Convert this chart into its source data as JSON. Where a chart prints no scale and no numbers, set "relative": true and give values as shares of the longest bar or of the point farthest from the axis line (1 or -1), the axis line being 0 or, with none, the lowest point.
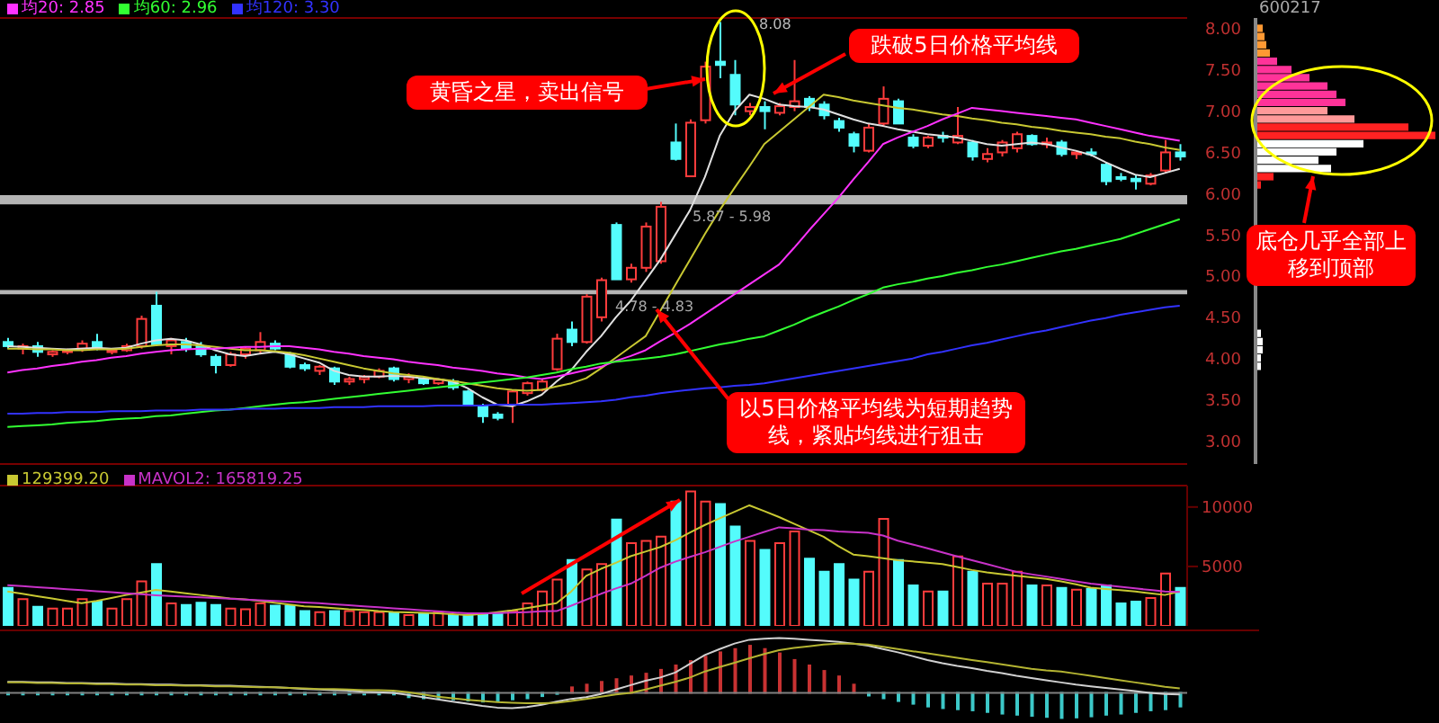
{
  "chart_data": [
    {
      "type": "candlestick",
      "categories": [
        null,
        null,
        null,
        null,
        null,
        null,
        null,
        null,
        null,
        null,
        null,
        null,
        null,
        null,
        null,
        null,
        null,
        null,
        null,
        null,
        null,
        null,
        null,
        null,
        null,
        null,
        null,
        null,
        null,
        null,
        null,
        null,
        null,
        null,
        null,
        null,
        null,
        null,
        null,
        null,
        null,
        null,
        null,
        null,
        null,
        null,
        null,
        null,
        null,
        null,
        null,
        null,
        null,
        null,
        null,
        null,
        null,
        null,
        null,
        null,
        null,
        null,
        null,
        null,
        null,
        null,
        null,
        null,
        null,
        null,
        null,
        null,
        null,
        null,
        null,
        null,
        null,
        null,
        null,
        null
      ],
      "ohlc": [
        [
          4.2,
          4.25,
          4.12,
          4.15
        ],
        [
          4.12,
          4.18,
          4.05,
          4.15
        ],
        [
          4.15,
          4.2,
          4.02,
          4.08
        ],
        [
          4.05,
          4.1,
          4.02,
          4.08
        ],
        [
          4.08,
          4.12,
          4.05,
          4.1
        ],
        [
          4.12,
          4.22,
          4.08,
          4.18
        ],
        [
          4.2,
          4.3,
          4.1,
          4.12
        ],
        [
          4.08,
          4.12,
          4.05,
          4.1
        ],
        [
          4.1,
          4.18,
          4.08,
          4.15
        ],
        [
          4.15,
          4.52,
          4.12,
          4.48
        ],
        [
          4.64,
          4.81,
          4.15,
          4.17
        ],
        [
          4.15,
          4.25,
          4.05,
          4.22
        ],
        [
          4.2,
          4.25,
          4.08,
          4.12
        ],
        [
          4.15,
          4.2,
          4.02,
          4.05
        ],
        [
          4.02,
          4.05,
          3.82,
          3.92
        ],
        [
          3.92,
          4.08,
          3.9,
          4.05
        ],
        [
          4.05,
          4.15,
          4.0,
          4.12
        ],
        [
          4.1,
          4.32,
          4.05,
          4.2
        ],
        [
          4.18,
          4.22,
          4.1,
          4.12
        ],
        [
          4.05,
          4.08,
          3.88,
          3.9
        ],
        [
          3.92,
          3.95,
          3.85,
          3.88
        ],
        [
          3.85,
          3.92,
          3.8,
          3.9
        ],
        [
          3.88,
          3.9,
          3.68,
          3.72
        ],
        [
          3.72,
          3.78,
          3.68,
          3.75
        ],
        [
          3.75,
          3.8,
          3.7,
          3.78
        ],
        [
          3.78,
          3.88,
          3.76,
          3.85
        ],
        [
          3.88,
          3.9,
          3.72,
          3.75
        ],
        [
          3.75,
          3.82,
          3.7,
          3.78
        ],
        [
          3.76,
          3.78,
          3.68,
          3.7
        ],
        [
          3.7,
          3.76,
          3.68,
          3.74
        ],
        [
          3.72,
          3.75,
          3.62,
          3.65
        ],
        [
          3.6,
          3.62,
          3.42,
          3.45
        ],
        [
          3.42,
          3.45,
          3.22,
          3.3
        ],
        [
          3.32,
          3.35,
          3.25,
          3.28
        ],
        [
          3.44,
          3.62,
          3.22,
          3.6
        ],
        [
          3.58,
          3.72,
          3.55,
          3.7
        ],
        [
          3.62,
          3.75,
          3.6,
          3.72
        ],
        [
          3.87,
          4.3,
          3.85,
          4.24
        ],
        [
          4.35,
          4.45,
          4.15,
          4.2
        ],
        [
          4.2,
          4.78,
          4.18,
          4.75
        ],
        [
          4.5,
          4.98,
          4.45,
          4.95
        ],
        [
          5.62,
          5.65,
          4.96,
          4.96
        ],
        [
          4.96,
          5.15,
          4.92,
          5.1
        ],
        [
          5.1,
          5.65,
          5.05,
          5.6
        ],
        [
          5.18,
          5.9,
          5.15,
          5.84
        ],
        [
          6.62,
          6.85,
          6.4,
          6.42
        ],
        [
          6.21,
          6.9,
          6.2,
          6.86
        ],
        [
          6.89,
          7.6,
          6.85,
          7.54
        ],
        [
          7.6,
          8.08,
          7.4,
          7.56
        ],
        [
          7.44,
          7.62,
          6.95,
          7.08
        ],
        [
          7.0,
          7.1,
          6.95,
          7.05
        ],
        [
          7.05,
          7.12,
          6.78,
          7.0
        ],
        [
          6.98,
          7.1,
          6.95,
          7.06
        ],
        [
          7.05,
          7.62,
          7.0,
          7.12
        ],
        [
          7.15,
          7.18,
          7.0,
          7.05
        ],
        [
          7.08,
          7.12,
          6.9,
          6.95
        ],
        [
          6.88,
          6.92,
          6.75,
          6.8
        ],
        [
          6.72,
          6.75,
          6.5,
          6.58
        ],
        [
          6.52,
          6.85,
          6.5,
          6.8
        ],
        [
          6.85,
          7.3,
          6.82,
          7.15
        ],
        [
          7.12,
          7.15,
          6.85,
          6.85
        ],
        [
          6.68,
          6.72,
          6.55,
          6.58
        ],
        [
          6.58,
          6.7,
          6.55,
          6.68
        ],
        [
          6.7,
          6.75,
          6.62,
          6.68
        ],
        [
          6.62,
          7.05,
          6.6,
          6.7
        ],
        [
          6.62,
          6.65,
          6.4,
          6.45
        ],
        [
          6.42,
          6.55,
          6.38,
          6.48
        ],
        [
          6.5,
          6.65,
          6.45,
          6.62
        ],
        [
          6.55,
          6.75,
          6.5,
          6.72
        ],
        [
          6.7,
          6.72,
          6.58,
          6.6
        ],
        [
          6.6,
          6.68,
          6.55,
          6.62
        ],
        [
          6.62,
          6.65,
          6.45,
          6.48
        ],
        [
          6.48,
          6.52,
          6.42,
          6.5
        ],
        [
          6.5,
          6.55,
          6.45,
          6.48
        ],
        [
          6.35,
          6.38,
          6.1,
          6.15
        ],
        [
          6.2,
          6.25,
          6.15,
          6.2
        ],
        [
          6.18,
          6.22,
          6.05,
          6.15
        ],
        [
          6.12,
          6.25,
          6.1,
          6.22
        ],
        [
          6.28,
          6.65,
          6.25,
          6.5
        ],
        [
          6.5,
          6.6,
          6.4,
          6.45
        ]
      ],
      "colors": [
        "#54fcfc",
        "#ff3c3c",
        "#54fcfc",
        "#ff3c3c",
        "#ff3c3c",
        "#ff3c3c",
        "#54fcfc",
        "#ff3c3c",
        "#ff3c3c",
        "#ff3c3c",
        "#54fcfc",
        "#ff3c3c",
        "#54fcfc",
        "#54fcfc",
        "#54fcfc",
        "#ff3c3c",
        "#ff3c3c",
        "#ff3c3c",
        "#54fcfc",
        "#54fcfc",
        "#54fcfc",
        "#ff3c3c",
        "#54fcfc",
        "#ff3c3c",
        "#ff3c3c",
        "#ff3c3c",
        "#54fcfc",
        "#ff3c3c",
        "#54fcfc",
        "#ff3c3c",
        "#54fcfc",
        "#54fcfc",
        "#54fcfc",
        "#54fcfc",
        "#ff3c3c",
        "#ff3c3c",
        "#ff3c3c",
        "#ff3c3c",
        "#54fcfc",
        "#ff3c3c",
        "#ff3c3c",
        "#54fcfc",
        "#ff3c3c",
        "#ff3c3c",
        "#ff3c3c",
        "#54fcfc",
        "#ff3c3c",
        "#ff3c3c",
        "#54fcfc",
        "#54fcfc",
        "#ff3c3c",
        "#54fcfc",
        "#ff3c3c",
        "#ff3c3c",
        "#54fcfc",
        "#54fcfc",
        "#54fcfc",
        "#54fcfc",
        "#ff3c3c",
        "#ff3c3c",
        "#54fcfc",
        "#54fcfc",
        "#ff3c3c",
        "#54fcfc",
        "#ff3c3c",
        "#54fcfc",
        "#ff3c3c",
        "#ff3c3c",
        "#ff3c3c",
        "#54fcfc",
        "#ff3c3c",
        "#54fcfc",
        "#ff3c3c",
        "#54fcfc",
        "#54fcfc",
        "#54fcfc",
        "#54fcfc",
        "#ff3c3c",
        "#ff3c3c",
        "#54fcfc"
      ],
      "series": [
        {
          "type": "line",
          "color": "#e0e0e0",
          "values": [
            4.15,
            4.14,
            4.13,
            4.12,
            4.11,
            4.12,
            4.13,
            4.12,
            4.13,
            4.18,
            4.22,
            4.24,
            4.22,
            4.17,
            4.1,
            4.05,
            4.03,
            4.06,
            4.08,
            4.05,
            4.0,
            3.95,
            3.85,
            3.8,
            3.78,
            3.78,
            3.79,
            3.78,
            3.76,
            3.75,
            3.72,
            3.64,
            3.53,
            3.44,
            3.42,
            3.48,
            3.56,
            3.72,
            3.86,
            4.08,
            4.27,
            4.5,
            4.7,
            4.95,
            5.2,
            5.5,
            5.8,
            6.2,
            6.7,
            7.0,
            7.2,
            7.15,
            7.08,
            7.06,
            7.05,
            7.02,
            6.96,
            6.9,
            6.85,
            6.82,
            6.78,
            6.75,
            6.72,
            6.7,
            6.68,
            6.64,
            6.6,
            6.58,
            6.6,
            6.62,
            6.6,
            6.56,
            6.52,
            6.47,
            6.38,
            6.3,
            6.23,
            6.2,
            6.25,
            6.3
          ]
        },
        {
          "type": "line",
          "color": "#c8c832",
          "values": [
            4.12,
            4.12,
            4.11,
            4.11,
            4.1,
            4.1,
            4.11,
            4.11,
            4.12,
            4.14,
            4.16,
            4.17,
            4.17,
            4.16,
            4.14,
            4.12,
            4.1,
            4.1,
            4.09,
            4.07,
            4.04,
            4.0,
            3.96,
            3.92,
            3.88,
            3.85,
            3.82,
            3.8,
            3.78,
            3.75,
            3.73,
            3.7,
            3.67,
            3.64,
            3.62,
            3.61,
            3.62,
            3.66,
            3.7,
            3.76,
            3.88,
            4.01,
            4.14,
            4.27,
            4.58,
            4.89,
            5.2,
            5.51,
            5.8,
            6.07,
            6.33,
            6.6,
            6.75,
            6.9,
            7.05,
            7.2,
            7.17,
            7.13,
            7.1,
            7.07,
            7.04,
            7.02,
            6.99,
            6.96,
            6.94,
            6.91,
            6.89,
            6.86,
            6.84,
            6.81,
            6.79,
            6.76,
            6.74,
            6.72,
            6.69,
            6.67,
            6.63,
            6.6,
            6.56,
            6.53
          ]
        },
        {
          "type": "line",
          "name": "均20: 2.85",
          "color": "#ff32ff",
          "values": [
            3.83,
            3.86,
            3.88,
            3.91,
            3.93,
            3.96,
            3.98,
            4.01,
            4.03,
            4.06,
            4.08,
            4.1,
            4.11,
            4.12,
            4.12,
            4.13,
            4.14,
            4.14,
            4.15,
            4.15,
            4.13,
            4.11,
            4.08,
            4.06,
            4.03,
            4.01,
            3.99,
            3.96,
            3.94,
            3.92,
            3.89,
            3.87,
            3.85,
            3.82,
            3.8,
            3.77,
            3.75,
            3.78,
            3.82,
            3.86,
            3.9,
            3.97,
            4.03,
            4.1,
            4.21,
            4.31,
            4.42,
            4.54,
            4.66,
            4.78,
            4.9,
            5.02,
            5.14,
            5.34,
            5.55,
            5.75,
            5.95,
            6.17,
            6.38,
            6.6,
            6.68,
            6.75,
            6.82,
            6.9,
            6.97,
            7.04,
            7.02,
            7.0,
            6.98,
            6.96,
            6.94,
            6.92,
            6.9,
            6.86,
            6.82,
            6.78,
            6.74,
            6.7,
            6.67,
            6.64
          ]
        },
        {
          "type": "line",
          "name": "均60: 2.96",
          "color": "#32ff32",
          "values": [
            3.17,
            3.18,
            3.19,
            3.2,
            3.22,
            3.23,
            3.24,
            3.26,
            3.27,
            3.28,
            3.3,
            3.31,
            3.33,
            3.35,
            3.37,
            3.38,
            3.4,
            3.42,
            3.44,
            3.46,
            3.47,
            3.49,
            3.51,
            3.53,
            3.55,
            3.57,
            3.59,
            3.61,
            3.63,
            3.65,
            3.67,
            3.69,
            3.71,
            3.73,
            3.75,
            3.77,
            3.8,
            3.83,
            3.87,
            3.9,
            3.94,
            3.96,
            3.98,
            4.0,
            4.02,
            4.05,
            4.09,
            4.13,
            4.17,
            4.2,
            4.24,
            4.27,
            4.34,
            4.41,
            4.49,
            4.56,
            4.63,
            4.71,
            4.78,
            4.86,
            4.9,
            4.93,
            4.97,
            5.0,
            5.04,
            5.07,
            5.11,
            5.14,
            5.18,
            5.22,
            5.26,
            5.3,
            5.33,
            5.37,
            5.41,
            5.45,
            5.51,
            5.57,
            5.63,
            5.69
          ]
        },
        {
          "type": "line",
          "name": "均120: 3.30",
          "color": "#3232ff",
          "values": [
            3.33,
            3.33,
            3.34,
            3.34,
            3.35,
            3.35,
            3.35,
            3.36,
            3.36,
            3.36,
            3.37,
            3.37,
            3.37,
            3.38,
            3.38,
            3.38,
            3.39,
            3.39,
            3.39,
            3.4,
            3.4,
            3.4,
            3.41,
            3.41,
            3.41,
            3.42,
            3.42,
            3.42,
            3.42,
            3.43,
            3.43,
            3.43,
            3.43,
            3.44,
            3.44,
            3.44,
            3.44,
            3.45,
            3.46,
            3.47,
            3.48,
            3.5,
            3.53,
            3.55,
            3.58,
            3.6,
            3.62,
            3.64,
            3.65,
            3.67,
            3.68,
            3.7,
            3.73,
            3.76,
            3.79,
            3.82,
            3.85,
            3.88,
            3.91,
            3.94,
            3.97,
            4.0,
            4.05,
            4.08,
            4.12,
            4.16,
            4.19,
            4.23,
            4.27,
            4.31,
            4.34,
            4.38,
            4.42,
            4.46,
            4.49,
            4.53,
            4.56,
            4.59,
            4.62,
            4.64
          ]
        }
      ],
      "ylim": [
        2.72,
        8.13
      ],
      "tick_labels": false,
      "legend": "top left",
      "bands": [
        {
          "axis": "y",
          "from": 5.87,
          "to": 5.98,
          "label": "5.87 - 5.98",
          "color": "#b4b4b4"
        },
        {
          "axis": "y",
          "from": 4.78,
          "to": 4.83,
          "label": "4.78 - 4.83",
          "color": "#b4b4b4"
        }
      ],
      "annotations": [
        "黄昏之星，卖出信号",
        "跌破5日价格平均线",
        "以5日价格平均线为短期趋势线，紧贴均线进行狙击",
        "8.08"
      ]
    },
    {
      "type": "bar",
      "orientation": "horizontal",
      "relative": true,
      "title": "600217",
      "x": [
        8.0,
        7.9,
        7.8,
        7.7,
        7.6,
        7.5,
        7.4,
        7.3,
        7.2,
        7.1,
        7.0,
        6.9,
        6.8,
        6.7,
        6.6,
        6.5,
        6.4,
        6.3,
        6.2,
        6.1,
        4.3,
        4.2,
        4.1,
        4.0,
        3.9
      ],
      "values": [
        0.04,
        0.05,
        0.06,
        0.08,
        0.12,
        0.2,
        0.3,
        0.4,
        0.45,
        0.5,
        0.4,
        0.55,
        0.85,
        1,
        0.6,
        0.45,
        0.35,
        0.42,
        0.1,
        0.03,
        0.03,
        0.04,
        0.04,
        0.03,
        0.03
      ],
      "colors": [
        "#ff9933",
        "#ff9933",
        "#ff9933",
        "#ff9933",
        "#ff3399",
        "#ff3399",
        "#ff3399",
        "#ff3399",
        "#ff3399",
        "#ff3399",
        "#ff9999",
        "#ff9999",
        "#ff2222",
        "#ff2222",
        "#ffffff",
        "#ffffff",
        "#ffffff",
        "#ffffff",
        "#ff2222",
        "#ff2222",
        "#ffffff",
        "#ffffff",
        "#ffffff",
        "#ffffff",
        "#ffffff"
      ],
      "ylim": [
        2.72,
        8.13
      ],
      "yticks": [
        {
          "value": 3,
          "label": "3.00"
        },
        {
          "value": 3.5,
          "label": "3.50"
        },
        {
          "value": 4,
          "label": "4.00"
        },
        {
          "value": 4.5,
          "label": "4.50"
        },
        {
          "value": 5,
          "label": "5.00"
        },
        {
          "value": 5.5,
          "label": "5.50"
        },
        {
          "value": 6,
          "label": "6.00"
        },
        {
          "value": 6.5,
          "label": "6.50"
        },
        {
          "value": 7,
          "label": "7.00"
        },
        {
          "value": 7.5,
          "label": "7.50"
        },
        {
          "value": 8,
          "label": "8.00"
        }
      ],
      "tick_labels": "y",
      "annotations": [
        "底仓几乎全部上移到顶部"
      ]
    },
    {
      "type": "bar",
      "categories": [
        null,
        null,
        null,
        null,
        null,
        null,
        null,
        null,
        null,
        null,
        null,
        null,
        null,
        null,
        null,
        null,
        null,
        null,
        null,
        null,
        null,
        null,
        null,
        null,
        null,
        null,
        null,
        null,
        null,
        null,
        null,
        null,
        null,
        null,
        null,
        null,
        null,
        null,
        null,
        null,
        null,
        null,
        null,
        null,
        null,
        null,
        null,
        null,
        null,
        null,
        null,
        null,
        null,
        null,
        null,
        null,
        null,
        null,
        null,
        null,
        null,
        null,
        null,
        null,
        null,
        null,
        null,
        null,
        null,
        null,
        null,
        null,
        null,
        null,
        null,
        null,
        null,
        null,
        null,
        null
      ],
      "series": [
        {
          "type": "bar",
          "values": [
            3200,
            2250,
            1600,
            1450,
            1450,
            2250,
            2050,
            1450,
            2250,
            3750,
            5200,
            1900,
            1750,
            1950,
            1750,
            1450,
            1400,
            1900,
            1700,
            1700,
            1250,
            1150,
            1250,
            1250,
            1150,
            1150,
            1050,
            900,
            1050,
            1150,
            900,
            900,
            900,
            1050,
            1250,
            1900,
            2900,
            3900,
            5550,
            4750,
            5200,
            8950,
            6950,
            7150,
            7500,
            10450,
            11300,
            10450,
            10250,
            8350,
            7150,
            6400,
            6950,
            7950,
            5650,
            4550,
            5200,
            3900,
            4550,
            9000,
            5550,
            3400,
            2900,
            2900,
            5850,
            4550,
            3550,
            3550,
            4550,
            3400,
            3400,
            3200,
            3050,
            3100,
            3400,
            1900,
            2050,
            2350,
            4400,
            3200
          ],
          "colors": [
            "#54fcfc",
            "#ff3c3c",
            "#54fcfc",
            "#ff3c3c",
            "#ff3c3c",
            "#ff3c3c",
            "#54fcfc",
            "#ff3c3c",
            "#ff3c3c",
            "#ff3c3c",
            "#54fcfc",
            "#ff3c3c",
            "#54fcfc",
            "#54fcfc",
            "#54fcfc",
            "#ff3c3c",
            "#ff3c3c",
            "#ff3c3c",
            "#54fcfc",
            "#54fcfc",
            "#54fcfc",
            "#ff3c3c",
            "#54fcfc",
            "#ff3c3c",
            "#ff3c3c",
            "#ff3c3c",
            "#54fcfc",
            "#ff3c3c",
            "#54fcfc",
            "#ff3c3c",
            "#54fcfc",
            "#54fcfc",
            "#54fcfc",
            "#54fcfc",
            "#ff3c3c",
            "#ff3c3c",
            "#ff3c3c",
            "#ff3c3c",
            "#54fcfc",
            "#ff3c3c",
            "#ff3c3c",
            "#54fcfc",
            "#ff3c3c",
            "#ff3c3c",
            "#ff3c3c",
            "#54fcfc",
            "#ff3c3c",
            "#ff3c3c",
            "#54fcfc",
            "#54fcfc",
            "#ff3c3c",
            "#54fcfc",
            "#ff3c3c",
            "#ff3c3c",
            "#54fcfc",
            "#54fcfc",
            "#54fcfc",
            "#54fcfc",
            "#ff3c3c",
            "#ff3c3c",
            "#54fcfc",
            "#54fcfc",
            "#ff3c3c",
            "#54fcfc",
            "#ff3c3c",
            "#54fcfc",
            "#ff3c3c",
            "#ff3c3c",
            "#ff3c3c",
            "#54fcfc",
            "#ff3c3c",
            "#54fcfc",
            "#ff3c3c",
            "#54fcfc",
            "#54fcfc",
            "#54fcfc",
            "#54fcfc",
            "#ff3c3c",
            "#ff3c3c",
            "#54fcfc"
          ]
        },
        {
          "type": "line",
          "name": "129399.20",
          "color": "#c8c832",
          "values": [
            2890,
            2700,
            2500,
            2300,
            2100,
            1910,
            2100,
            2350,
            2600,
            2800,
            3020,
            2900,
            2750,
            2600,
            2450,
            2300,
            2230,
            2100,
            1950,
            1800,
            1650,
            1580,
            1500,
            1400,
            1350,
            1250,
            1180,
            1140,
            1100,
            1050,
            980,
            910,
            1000,
            1150,
            1300,
            1500,
            1700,
            1910,
            2900,
            4210,
            4800,
            5300,
            5860,
            6250,
            6640,
            7200,
            7850,
            8490,
            9050,
            9600,
            10140,
            9650,
            9150,
            8600,
            8050,
            7500,
            6700,
            6000,
            5860,
            5700,
            5530,
            5420,
            5310,
            5200,
            4950,
            4700,
            4500,
            4350,
            4210,
            4080,
            3950,
            3750,
            3500,
            3220,
            3100,
            3000,
            2890,
            2750,
            2600,
            2890
          ]
        },
        {
          "type": "line",
          "name": "MAVOL2: 165819.25",
          "color": "#c832c8",
          "values": [
            3420,
            3340,
            3260,
            3170,
            3090,
            3000,
            2920,
            2830,
            2750,
            2660,
            2580,
            2520,
            2460,
            2400,
            2340,
            2280,
            2220,
            2160,
            2100,
            2040,
            1970,
            1910,
            1820,
            1740,
            1650,
            1570,
            1480,
            1400,
            1310,
            1230,
            1140,
            1050,
            1060,
            1080,
            1110,
            1160,
            1220,
            1240,
            1700,
            2200,
            2700,
            3150,
            3550,
            4200,
            4900,
            5400,
            5800,
            6190,
            6650,
            7100,
            7500,
            7900,
            8290,
            8200,
            8100,
            8050,
            7950,
            7880,
            7830,
            7600,
            7170,
            6850,
            6520,
            6190,
            5850,
            5520,
            5200,
            4870,
            4540,
            4340,
            4150,
            3950,
            3750,
            3550,
            3420,
            3290,
            3150,
            3020,
            2890,
            2850
          ]
        }
      ],
      "ylim": [
        0,
        11800
      ],
      "yticks": [
        5000,
        10000
      ],
      "tick_labels": "y",
      "legend": "top left"
    },
    {
      "type": "bar",
      "relative": true,
      "categories": [
        null,
        null,
        null,
        null,
        null,
        null,
        null,
        null,
        null,
        null,
        null,
        null,
        null,
        null,
        null,
        null,
        null,
        null,
        null,
        null,
        null,
        null,
        null,
        null,
        null,
        null,
        null,
        null,
        null,
        null,
        null,
        null,
        null,
        null,
        null,
        null,
        null,
        null,
        null,
        null,
        null,
        null,
        null,
        null,
        null,
        null,
        null,
        null,
        null,
        null,
        null,
        null,
        null,
        null,
        null,
        null,
        null,
        null,
        null,
        null,
        null,
        null,
        null,
        null,
        null,
        null,
        null,
        null,
        null,
        null,
        null,
        null,
        null,
        null,
        null,
        null,
        null,
        null,
        null,
        null
      ],
      "series": [
        {
          "type": "bar",
          "values": [
            -0.03,
            -0.03,
            -0.03,
            -0.03,
            -0.03,
            -0.03,
            -0.03,
            -0.03,
            -0.03,
            -0.03,
            -0.03,
            -0.03,
            -0.03,
            -0.03,
            -0.03,
            -0.03,
            -0.03,
            -0.03,
            -0.03,
            -0.03,
            -0.03,
            -0.03,
            -0.03,
            -0.03,
            -0.03,
            -0.03,
            -0.03,
            -0.08,
            -0.1,
            -0.1,
            -0.12,
            -0.14,
            -0.16,
            -0.14,
            -0.12,
            -0.1,
            -0.06,
            -0.02,
            0.1,
            0.15,
            0.2,
            0.25,
            0.3,
            0.35,
            0.42,
            0.5,
            0.58,
            0.66,
            0.74,
            0.8,
            0.86,
            0.8,
            0.72,
            0.6,
            0.5,
            0.4,
            0.3,
            0.15,
            -0.05,
            -0.1,
            -0.15,
            -0.2,
            -0.25,
            -0.28,
            -0.3,
            -0.32,
            -0.35,
            -0.38,
            -0.4,
            -0.42,
            -0.44,
            -0.46,
            -0.45,
            -0.43,
            -0.4,
            -0.38,
            -0.35,
            -0.32,
            -0.3,
            -0.25
          ],
          "colors": [
            "#3cc8c8",
            "#3cc8c8",
            "#3cc8c8",
            "#3cc8c8",
            "#3cc8c8",
            "#3cc8c8",
            "#3cc8c8",
            "#3cc8c8",
            "#3cc8c8",
            "#3cc8c8",
            "#3cc8c8",
            "#3cc8c8",
            "#3cc8c8",
            "#3cc8c8",
            "#3cc8c8",
            "#3cc8c8",
            "#3cc8c8",
            "#3cc8c8",
            "#3cc8c8",
            "#3cc8c8",
            "#3cc8c8",
            "#3cc8c8",
            "#3cc8c8",
            "#3cc8c8",
            "#3cc8c8",
            "#3cc8c8",
            "#3cc8c8",
            "#3cc8c8",
            "#3cc8c8",
            "#3cc8c8",
            "#3cc8c8",
            "#3cc8c8",
            "#3cc8c8",
            "#3cc8c8",
            "#3cc8c8",
            "#3cc8c8",
            "#3cc8c8",
            "#3cc8c8",
            "#c83232",
            "#c83232",
            "#c83232",
            "#c83232",
            "#c83232",
            "#c83232",
            "#c83232",
            "#c83232",
            "#c83232",
            "#c83232",
            "#c83232",
            "#c83232",
            "#c83232",
            "#c83232",
            "#c83232",
            "#c83232",
            "#c83232",
            "#c83232",
            "#c83232",
            "#c83232",
            "#3cc8c8",
            "#3cc8c8",
            "#3cc8c8",
            "#3cc8c8",
            "#3cc8c8",
            "#3cc8c8",
            "#3cc8c8",
            "#3cc8c8",
            "#3cc8c8",
            "#3cc8c8",
            "#3cc8c8",
            "#3cc8c8",
            "#3cc8c8",
            "#3cc8c8",
            "#3cc8c8",
            "#3cc8c8",
            "#3cc8c8",
            "#3cc8c8",
            "#3cc8c8",
            "#3cc8c8",
            "#3cc8c8",
            "#3cc8c8"
          ]
        },
        {
          "type": "line",
          "color": "#d0d0d0",
          "values": [
            0.2,
            0.2,
            0.19,
            0.19,
            0.18,
            0.18,
            0.17,
            0.17,
            0.16,
            0.16,
            0.15,
            0.15,
            0.14,
            0.14,
            0.13,
            0.13,
            0.12,
            0.11,
            0.1,
            0.09,
            0.07,
            0.06,
            0.05,
            0.04,
            0.02,
            0.01,
            0,
            -0.04,
            -0.08,
            -0.12,
            -0.16,
            -0.2,
            -0.24,
            -0.27,
            -0.28,
            -0.26,
            -0.22,
            -0.16,
            -0.11,
            -0.08,
            -0.02,
            0.06,
            0.14,
            0.22,
            0.28,
            0.37,
            0.53,
            0.69,
            0.8,
            0.9,
            0.97,
            0.99,
            1,
            0.99,
            0.97,
            0.95,
            0.93,
            0.9,
            0.86,
            0.8,
            0.74,
            0.67,
            0.6,
            0.54,
            0.49,
            0.45,
            0.4,
            0.36,
            0.31,
            0.27,
            0.23,
            0.19,
            0.15,
            0.12,
            0.09,
            0.06,
            0.03,
            0,
            -0.02,
            -0.03
          ]
        },
        {
          "type": "line",
          "color": "#b4b432",
          "values": [
            0.19,
            0.19,
            0.18,
            0.18,
            0.17,
            0.17,
            0.16,
            0.16,
            0.15,
            0.15,
            0.14,
            0.14,
            0.13,
            0.13,
            0.12,
            0.12,
            0.11,
            0.1,
            0.1,
            0.09,
            0.08,
            0.07,
            0.07,
            0.06,
            0.05,
            0.05,
            0.04,
            0.01,
            -0.03,
            -0.07,
            -0.1,
            -0.13,
            -0.15,
            -0.17,
            -0.18,
            -0.19,
            -0.19,
            -0.18,
            -0.15,
            -0.11,
            -0.07,
            -0.03,
            0,
            0.06,
            0.13,
            0.2,
            0.28,
            0.39,
            0.47,
            0.55,
            0.63,
            0.71,
            0.78,
            0.82,
            0.85,
            0.88,
            0.9,
            0.9,
            0.88,
            0.84,
            0.8,
            0.76,
            0.72,
            0.68,
            0.64,
            0.6,
            0.56,
            0.52,
            0.48,
            0.44,
            0.41,
            0.39,
            0.35,
            0.31,
            0.27,
            0.23,
            0.19,
            0.15,
            0.11,
            0.08
          ]
        }
      ]
    }
  ]
}
